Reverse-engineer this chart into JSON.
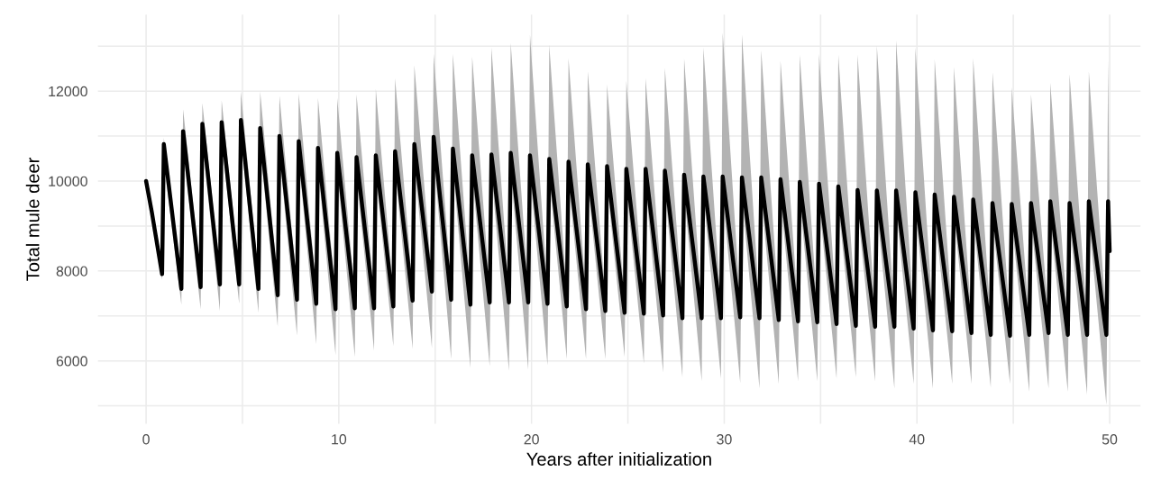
{
  "chart_data": {
    "type": "line",
    "xlabel": "Years after initialization",
    "ylabel": "Total mule deer",
    "x": [
      0,
      0.3,
      0.83,
      0.92,
      1.83,
      1.92,
      2.83,
      2.92,
      3.83,
      3.92,
      4.83,
      4.92,
      5.83,
      5.92,
      6.83,
      6.92,
      7.83,
      7.92,
      8.83,
      8.92,
      9.83,
      9.92,
      10.83,
      10.92,
      11.83,
      11.92,
      12.83,
      12.92,
      13.83,
      13.92,
      14.83,
      14.92,
      15.83,
      15.92,
      16.83,
      16.92,
      17.83,
      17.92,
      18.83,
      18.92,
      19.83,
      19.92,
      20.83,
      20.92,
      21.83,
      21.92,
      22.83,
      22.92,
      23.83,
      23.92,
      24.83,
      24.92,
      25.83,
      25.92,
      26.83,
      26.92,
      27.83,
      27.92,
      28.83,
      28.92,
      29.83,
      29.92,
      30.83,
      30.92,
      31.83,
      31.92,
      32.83,
      32.92,
      33.83,
      33.92,
      34.83,
      34.92,
      35.83,
      35.92,
      36.83,
      36.92,
      37.83,
      37.92,
      38.83,
      38.92,
      39.83,
      39.92,
      40.83,
      40.92,
      41.83,
      41.92,
      42.83,
      42.92,
      43.83,
      43.92,
      44.83,
      44.92,
      45.83,
      45.92,
      46.83,
      46.92,
      47.83,
      47.92,
      48.83,
      48.92,
      49.83,
      49.92,
      50
    ],
    "series": [
      {
        "color": "#000000",
        "values": [
          10000,
          9300,
          7930,
          10820,
          7600,
          11110,
          7640,
          11275,
          7700,
          11310,
          7700,
          11360,
          7600,
          11180,
          7460,
          11000,
          7360,
          10885,
          7270,
          10735,
          7150,
          10625,
          7170,
          10530,
          7170,
          10570,
          7210,
          10660,
          7340,
          10820,
          7540,
          10980,
          7360,
          10720,
          7250,
          10570,
          7300,
          10590,
          7300,
          10625,
          7300,
          10570,
          7270,
          10490,
          7210,
          10430,
          7150,
          10370,
          7110,
          10330,
          7070,
          10270,
          7050,
          10270,
          7010,
          10230,
          6950,
          10140,
          6950,
          10100,
          6950,
          10100,
          6970,
          10080,
          6950,
          10080,
          6910,
          10040,
          6880,
          9980,
          6860,
          9940,
          6820,
          9880,
          6780,
          9800,
          6760,
          9790,
          6760,
          9790,
          6720,
          9750,
          6680,
          9700,
          6660,
          9650,
          6620,
          9590,
          6580,
          9510,
          6560,
          9490,
          6580,
          9510,
          6620,
          9550,
          6580,
          9510,
          6580,
          9550,
          6580,
          9550,
          8440
        ],
        "lower": [
          10000,
          9250,
          7800,
          10420,
          7250,
          10710,
          7150,
          10875,
          7110,
          10910,
          7270,
          10960,
          7070,
          10780,
          6760,
          10600,
          6560,
          10485,
          6370,
          10335,
          6130,
          10225,
          6090,
          10130,
          6230,
          10170,
          6330,
          10260,
          6270,
          10420,
          6290,
          10580,
          6040,
          10320,
          5840,
          10170,
          5880,
          10190,
          5780,
          10225,
          5800,
          10170,
          5900,
          10090,
          6040,
          10030,
          6040,
          9970,
          6040,
          9930,
          6090,
          9870,
          5940,
          9870,
          5740,
          9830,
          5640,
          9740,
          5550,
          9700,
          5610,
          9700,
          5510,
          9680,
          5390,
          9680,
          5490,
          9640,
          5550,
          9580,
          5550,
          9540,
          5610,
          9480,
          5640,
          9400,
          5550,
          9390,
          5390,
          9390,
          5490,
          9350,
          5390,
          9300,
          5490,
          9250,
          5490,
          9190,
          5410,
          9110,
          5490,
          9090,
          5310,
          9110,
          5390,
          9150,
          5310,
          9110,
          5250,
          9150,
          5020,
          9150,
          8000
        ],
        "upper": [
          10000,
          9350,
          8230,
          10960,
          7900,
          11600,
          7940,
          11740,
          8000,
          11800,
          8000,
          11990,
          7900,
          11990,
          7760,
          11900,
          7660,
          11950,
          7570,
          11850,
          7450,
          11850,
          7470,
          11930,
          7470,
          12050,
          7510,
          12290,
          7640,
          12580,
          7840,
          12830,
          7660,
          12830,
          7550,
          12770,
          7600,
          12970,
          7600,
          13070,
          7600,
          13260,
          7570,
          13030,
          7510,
          12730,
          7450,
          12440,
          7410,
          12150,
          7370,
          12230,
          7350,
          12290,
          7310,
          12520,
          7250,
          12730,
          7250,
          12970,
          7250,
          13300,
          7270,
          13260,
          7250,
          12910,
          7210,
          12680,
          7180,
          12810,
          7160,
          12830,
          7120,
          12810,
          7080,
          12810,
          7060,
          13010,
          7060,
          13130,
          7020,
          12970,
          6980,
          12710,
          6960,
          12540,
          6920,
          12730,
          6880,
          12420,
          6860,
          12090,
          6880,
          11930,
          6920,
          12190,
          6880,
          12380,
          6880,
          12440,
          6880,
          12710,
          8900
        ]
      }
    ],
    "xlim": [
      -2.5,
      51.6
    ],
    "ylim": [
      4600,
      13700
    ],
    "xticks": [
      0,
      {
        "value": 5,
        "label": null
      },
      10,
      {
        "value": 15,
        "label": null
      },
      20,
      {
        "value": 25,
        "label": null
      },
      30,
      {
        "value": 35,
        "label": null
      },
      40,
      {
        "value": 45,
        "label": null
      },
      50
    ],
    "yticks": [
      {
        "value": 5000,
        "label": null
      },
      6000,
      {
        "value": 7000,
        "label": null
      },
      8000,
      {
        "value": 9000,
        "label": null
      },
      10000,
      {
        "value": 11000,
        "label": null
      },
      12000,
      {
        "value": 13000,
        "label": null
      }
    ],
    "grid": true,
    "line_style": "solid",
    "marker": "none"
  }
}
